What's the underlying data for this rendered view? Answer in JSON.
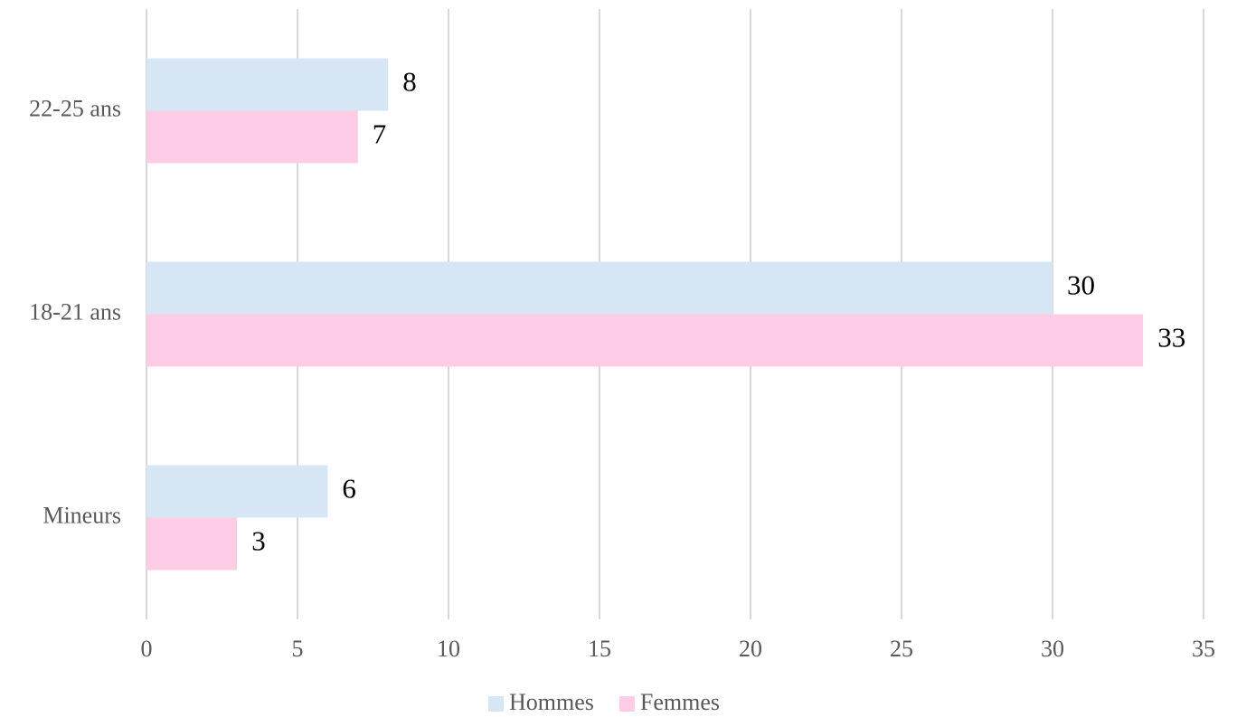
{
  "chart_data": {
    "type": "bar",
    "orientation": "horizontal",
    "categories": [
      "Mineurs",
      "18-21 ans",
      "22-25 ans"
    ],
    "series": [
      {
        "name": "Hommes",
        "color": "#d6e6f5",
        "values": [
          6,
          30,
          8
        ]
      },
      {
        "name": "Femmes",
        "color": "#ffcce6",
        "values": [
          3,
          33,
          7
        ]
      }
    ],
    "xlim": [
      0,
      35
    ],
    "xticks": [
      0,
      5,
      10,
      15,
      20,
      25,
      30,
      35
    ],
    "grid": true,
    "legend": "bottom"
  }
}
